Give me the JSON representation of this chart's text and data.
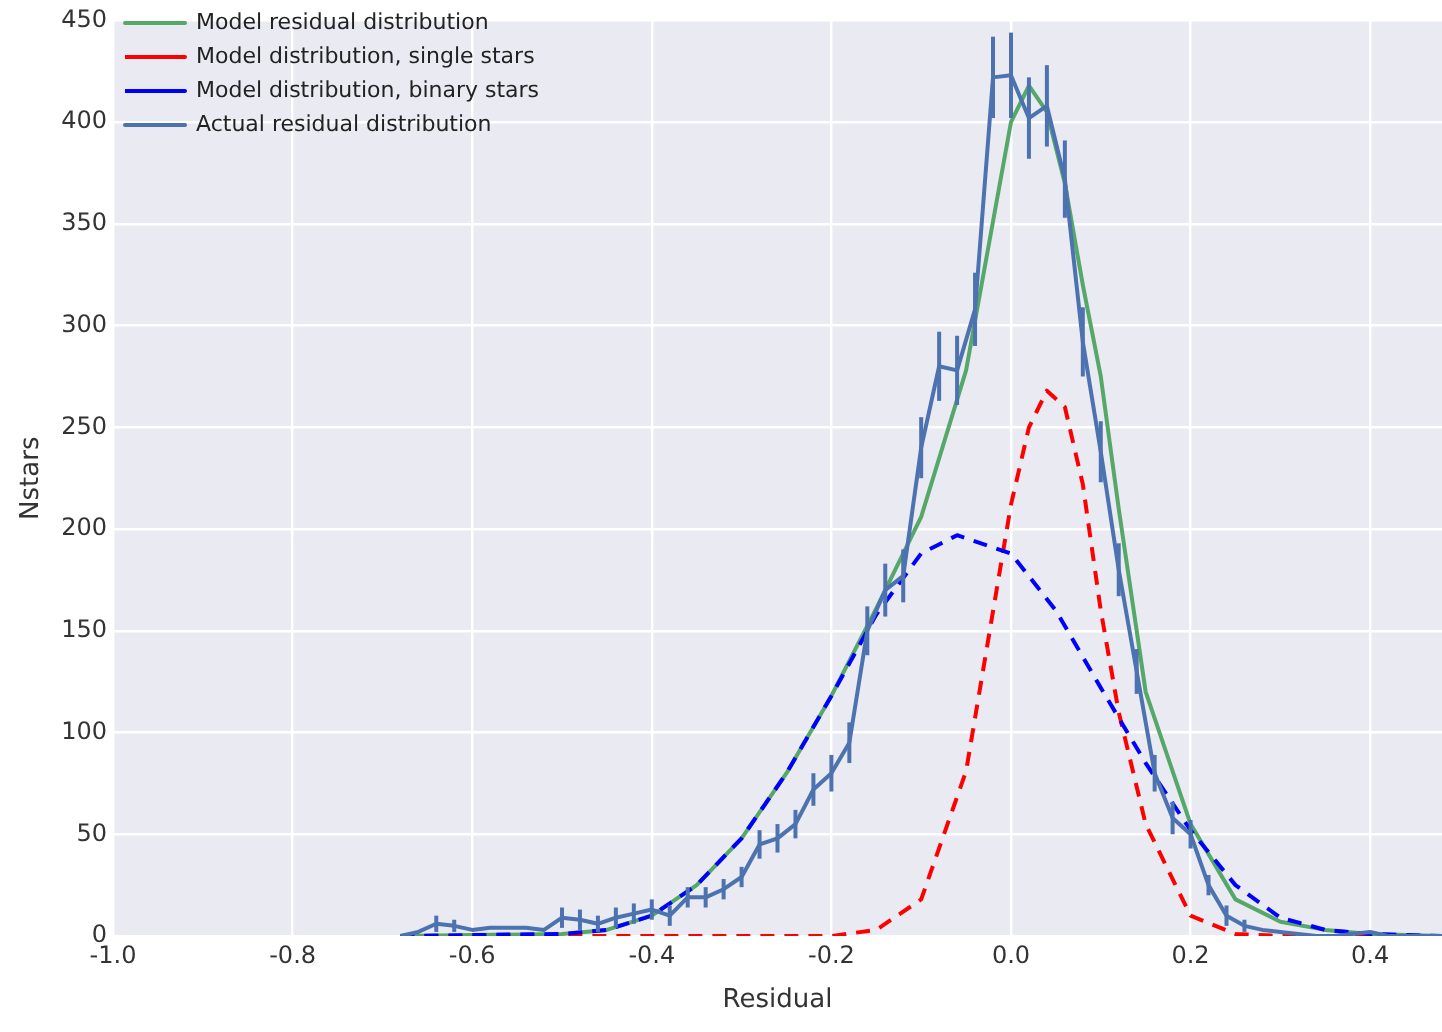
{
  "chart_data": {
    "type": "line",
    "xlabel": "Residual",
    "ylabel": "Nstars",
    "xlim": [
      -1,
      0.48
    ],
    "xticks": [
      {
        "value": -1,
        "label": "-1.0"
      },
      {
        "value": -0.8,
        "label": "-0.8"
      },
      {
        "value": -0.6,
        "label": "-0.6"
      },
      {
        "value": -0.4,
        "label": "-0.4"
      },
      {
        "value": -0.2,
        "label": "-0.2"
      },
      {
        "value": 0,
        "label": "0.0"
      },
      {
        "value": 0.2,
        "label": "0.2"
      },
      {
        "value": 0.4,
        "label": "0.4"
      }
    ],
    "ylim": [
      0,
      450
    ],
    "yticks": [
      0,
      50,
      100,
      150,
      200,
      250,
      300,
      350,
      400,
      450
    ],
    "grid": true,
    "legend": "top left",
    "marker": "none",
    "series": [
      {
        "name": "Model residual distribution",
        "color": "#55a868",
        "line_style": "solid",
        "x": [
          -0.68,
          -0.5,
          -0.45,
          -0.4,
          -0.35,
          -0.3,
          -0.25,
          -0.2,
          -0.15,
          -0.1,
          -0.05,
          0,
          0.02,
          0.04,
          0.06,
          0.08,
          0.1,
          0.12,
          0.15,
          0.2,
          0.25,
          0.3,
          0.35,
          0.4,
          0.48
        ],
        "values": [
          0,
          1,
          3,
          10,
          25,
          48,
          80,
          118,
          161,
          206,
          278,
          400,
          418,
          405,
          370,
          320,
          275,
          210,
          120,
          55,
          18,
          7,
          3,
          1,
          0
        ]
      },
      {
        "name": "Model distribution, single stars",
        "color": "#ff0000",
        "line_style": "dashed",
        "x": [
          -0.68,
          -0.2,
          -0.15,
          -0.1,
          -0.05,
          0,
          0.02,
          0.04,
          0.06,
          0.08,
          0.1,
          0.12,
          0.15,
          0.2,
          0.25,
          0.3,
          0.48
        ],
        "values": [
          0,
          0,
          3,
          18,
          81,
          212,
          250,
          268,
          260,
          222,
          160,
          110,
          55,
          10,
          1,
          0,
          0
        ]
      },
      {
        "name": "Model distribution, binary stars",
        "color": "#0000ff",
        "line_style": "dashed",
        "x": [
          -0.68,
          -0.5,
          -0.45,
          -0.4,
          -0.35,
          -0.3,
          -0.25,
          -0.2,
          -0.15,
          -0.1,
          -0.06,
          0,
          0.05,
          0.1,
          0.15,
          0.2,
          0.25,
          0.3,
          0.35,
          0.4,
          0.48
        ],
        "values": [
          0,
          1,
          3,
          10,
          25,
          48,
          80,
          118,
          158,
          188,
          197,
          188,
          160,
          122,
          85,
          52,
          25,
          9,
          3,
          1,
          0
        ]
      },
      {
        "name": "Actual residual distribution",
        "color": "#4c72b0",
        "line_style": "solid",
        "x": [
          -0.68,
          -0.66,
          -0.64,
          -0.62,
          -0.6,
          -0.58,
          -0.56,
          -0.54,
          -0.52,
          -0.5,
          -0.48,
          -0.46,
          -0.44,
          -0.42,
          -0.4,
          -0.38,
          -0.36,
          -0.34,
          -0.32,
          -0.3,
          -0.28,
          -0.26,
          -0.24,
          -0.22,
          -0.2,
          -0.18,
          -0.16,
          -0.14,
          -0.12,
          -0.1,
          -0.08,
          -0.06,
          -0.04,
          -0.02,
          0,
          0.02,
          0.04,
          0.06,
          0.08,
          0.1,
          0.12,
          0.14,
          0.16,
          0.18,
          0.2,
          0.22,
          0.24,
          0.26,
          0.28,
          0.3,
          0.32,
          0.34,
          0.36,
          0.38,
          0.4,
          0.42,
          0.44,
          0.46,
          0.48
        ],
        "values": [
          0,
          2,
          6,
          5,
          3,
          4,
          4,
          4,
          3,
          9,
          8,
          6,
          9,
          11,
          13,
          10,
          19,
          19,
          23,
          29,
          45,
          48,
          55,
          72,
          80,
          95,
          150,
          170,
          177,
          240,
          280,
          278,
          308,
          422,
          423,
          402,
          408,
          372,
          292,
          238,
          180,
          130,
          80,
          58,
          50,
          25,
          10,
          5,
          3,
          2,
          1,
          0,
          0,
          1,
          2,
          0,
          0,
          0,
          0
        ],
        "errors": [
          null,
          null,
          4,
          3,
          null,
          null,
          null,
          null,
          null,
          5,
          5,
          4,
          5,
          5,
          5,
          5,
          5,
          5,
          5,
          5,
          7,
          7,
          7,
          8,
          9,
          10,
          12,
          13,
          13,
          15,
          17,
          17,
          18,
          20,
          21,
          20,
          20,
          19,
          17,
          15,
          13,
          11,
          9,
          8,
          7,
          5,
          5,
          3,
          null,
          null,
          null,
          null,
          null,
          null,
          null,
          null,
          null,
          null,
          null
        ]
      }
    ]
  }
}
